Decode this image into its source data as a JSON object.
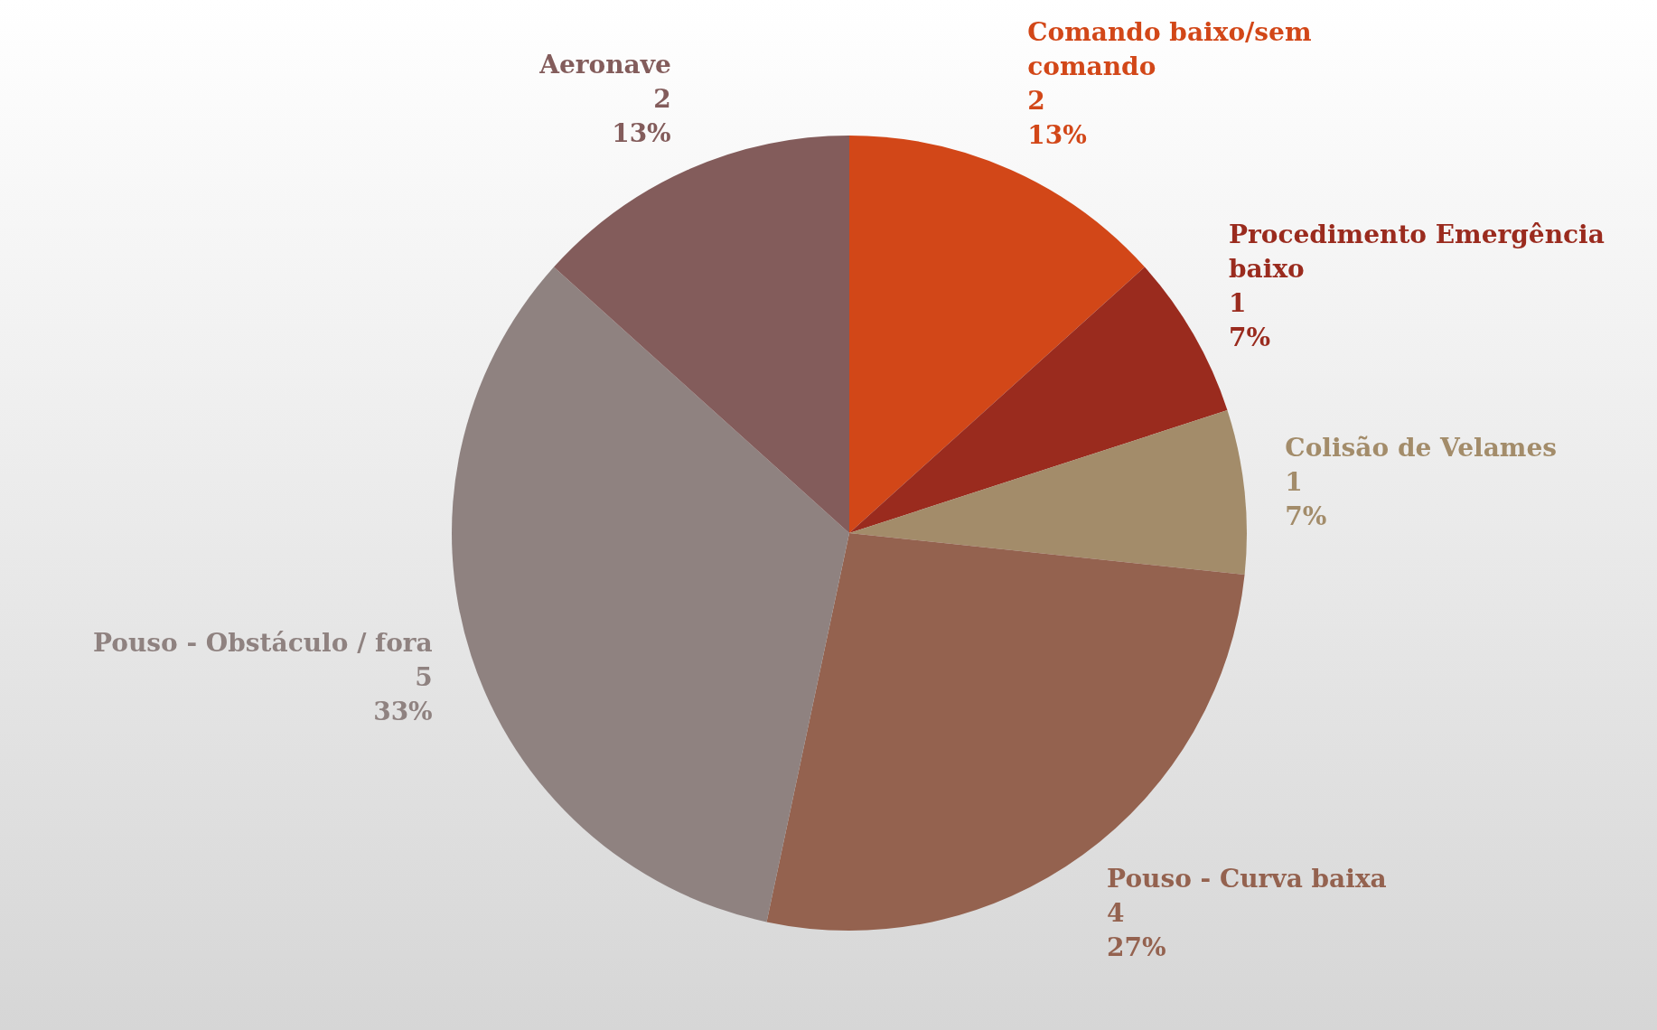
{
  "chart_data": {
    "type": "pie",
    "categories": [
      "Comando baixo/sem comando",
      "Procedimento Emergência baixo",
      "Colisão de Velames",
      "Pouso - Curva baixa",
      "Pouso - Obstáculo / fora",
      "Aeronave"
    ],
    "values": [
      2,
      1,
      1,
      4,
      5,
      2
    ],
    "colors": [
      "#d24718",
      "#9a2b1e",
      "#a38c6a",
      "#94624f",
      "#8f8280",
      "#835c5b"
    ],
    "value_labels": [
      "2\n13%",
      "1\n7%",
      "1\n7%",
      "4\n27%",
      "5\n33%",
      "2\n13%"
    ],
    "legend": false
  }
}
